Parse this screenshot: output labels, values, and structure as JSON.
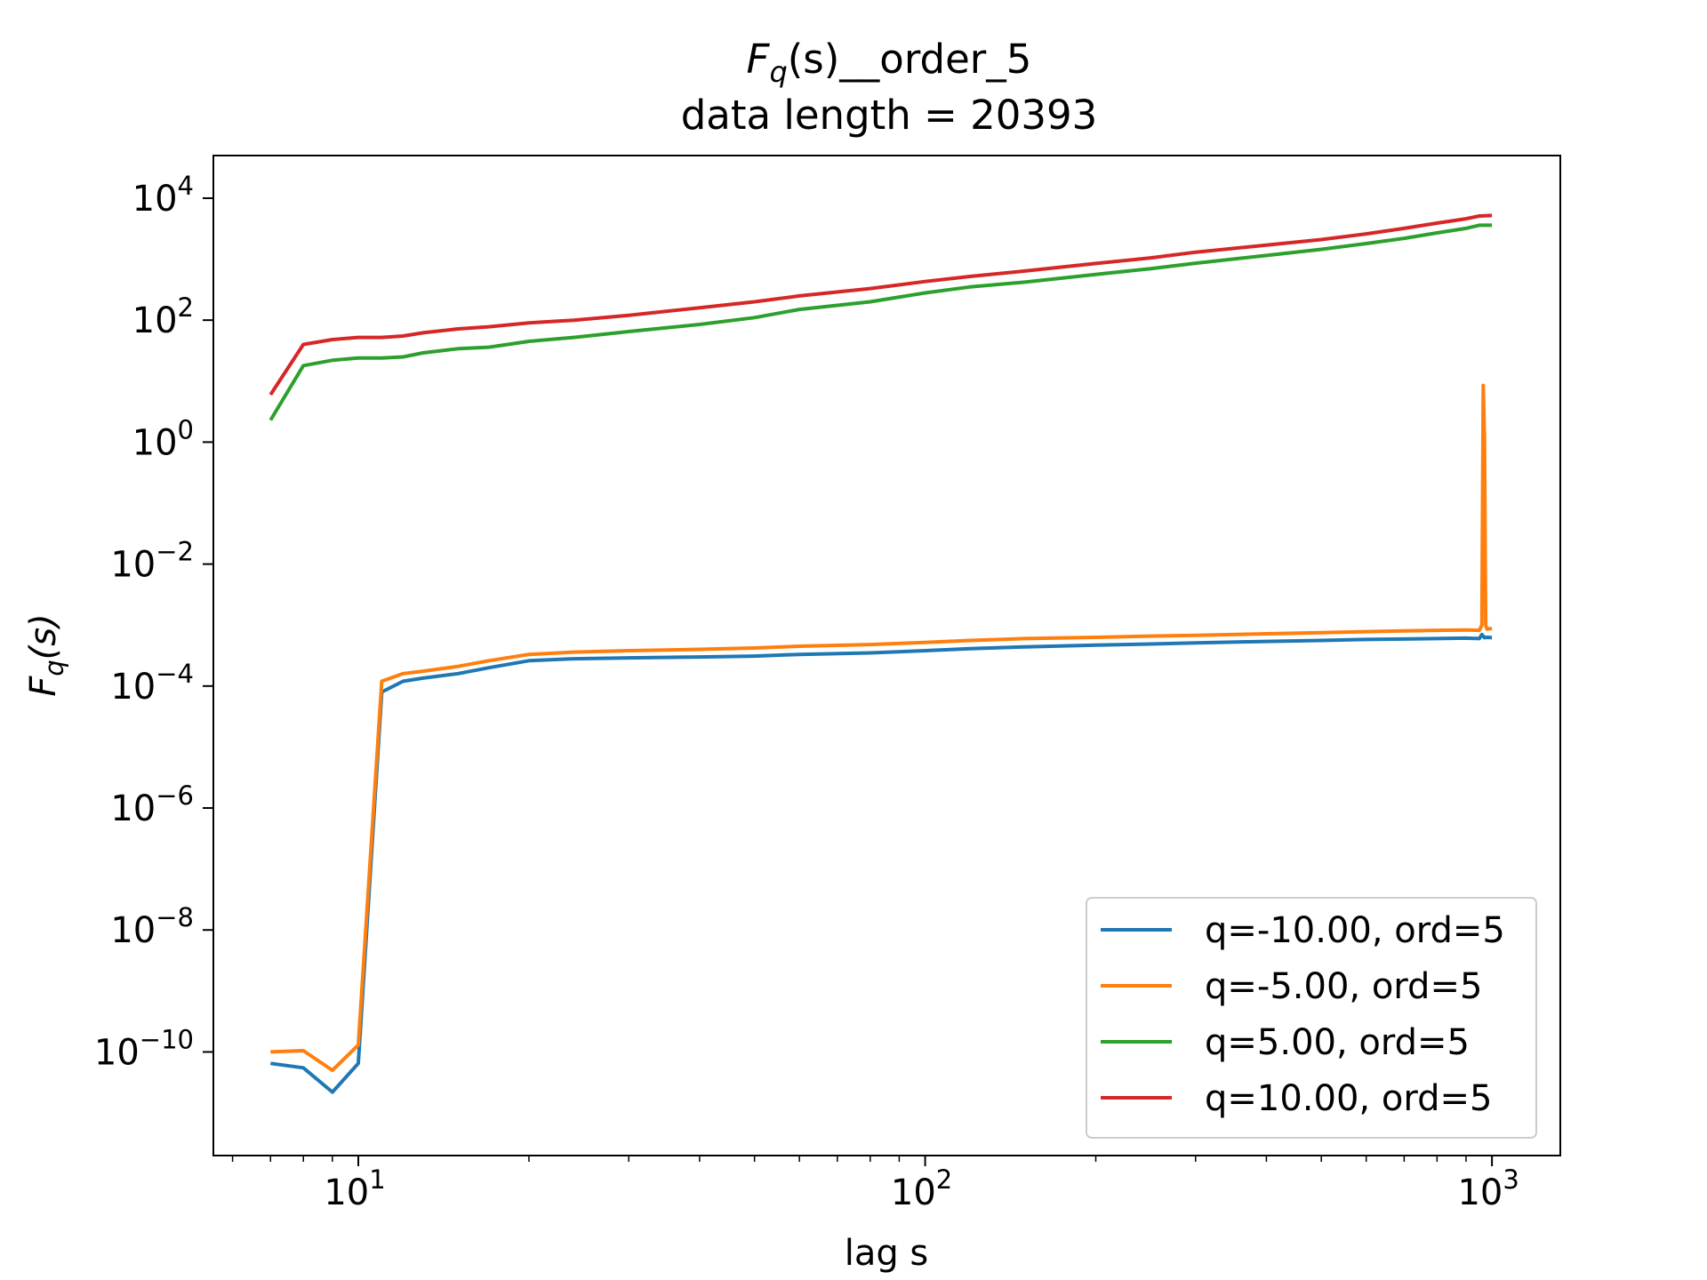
{
  "chart_data": {
    "type": "line",
    "title_main": "F",
    "title_sub": "q",
    "title_rest": "(s)__order_5",
    "subtitle": "data length = 20393",
    "xlabel": "lag s",
    "ylabel_main": "F",
    "ylabel_sub": "q",
    "ylabel_rest": "(s)",
    "x_scale": "log",
    "y_scale": "log",
    "xlim": [
      5.55,
      1320
    ],
    "ylim": [
      2e-12,
      50000
    ],
    "x_ticks": [
      {
        "base": "10",
        "exp": "1",
        "value": 10
      },
      {
        "base": "10",
        "exp": "2",
        "value": 100
      },
      {
        "base": "10",
        "exp": "3",
        "value": 1000
      }
    ],
    "y_ticks": [
      {
        "base": "10",
        "exp": "−10",
        "value": 1e-10
      },
      {
        "base": "10",
        "exp": "−8",
        "value": 1e-08
      },
      {
        "base": "10",
        "exp": "−6",
        "value": 1e-06
      },
      {
        "base": "10",
        "exp": "−4",
        "value": 0.0001
      },
      {
        "base": "10",
        "exp": "−2",
        "value": 0.01
      },
      {
        "base": "10",
        "exp": "0",
        "value": 1
      },
      {
        "base": "10",
        "exp": "2",
        "value": 100
      },
      {
        "base": "10",
        "exp": "4",
        "value": 10000
      }
    ],
    "grid": false,
    "legend_position": "lower-right",
    "series": [
      {
        "name": "q=-10.00, ord=5",
        "color": "#1f77b4",
        "x": [
          7,
          8,
          9,
          10,
          11,
          12,
          13,
          15,
          17,
          20,
          24,
          30,
          40,
          50,
          60,
          80,
          100,
          120,
          150,
          200,
          250,
          300,
          400,
          500,
          600,
          700,
          800,
          900,
          950,
          960,
          970,
          980,
          1000
        ],
        "y": [
          6.5e-11,
          5.5e-11,
          2.2e-11,
          6.5e-11,
          8e-05,
          0.00012,
          0.000135,
          0.00016,
          0.0002,
          0.00026,
          0.00028,
          0.00029,
          0.0003,
          0.00031,
          0.00033,
          0.00035,
          0.00038,
          0.00041,
          0.00044,
          0.00047,
          0.00049,
          0.00051,
          0.00054,
          0.00056,
          0.00058,
          0.00059,
          0.0006,
          0.00061,
          0.0006,
          0.0007,
          0.00062,
          0.00063,
          0.00062
        ]
      },
      {
        "name": "q=-5.00, ord=5",
        "color": "#ff7f0e",
        "x": [
          7,
          8,
          9,
          10,
          11,
          12,
          13,
          15,
          17,
          20,
          24,
          30,
          40,
          50,
          60,
          80,
          100,
          120,
          150,
          200,
          250,
          300,
          400,
          500,
          600,
          700,
          800,
          900,
          950,
          960,
          965,
          970,
          975,
          980,
          1000
        ],
        "y": [
          1e-10,
          1.05e-10,
          5e-11,
          1.3e-10,
          0.00012,
          0.00016,
          0.000175,
          0.00021,
          0.00026,
          0.00033,
          0.00036,
          0.00038,
          0.0004,
          0.00042,
          0.00045,
          0.00048,
          0.00052,
          0.00056,
          0.0006,
          0.00063,
          0.00066,
          0.00068,
          0.00072,
          0.00075,
          0.00078,
          0.0008,
          0.00082,
          0.00083,
          0.00082,
          0.001,
          8.5,
          1.2,
          0.001,
          0.00086,
          0.00088
        ]
      },
      {
        "name": "q=5.00, ord=5",
        "color": "#2ca02c",
        "x": [
          7,
          8,
          9,
          10,
          11,
          12,
          13,
          15,
          17,
          20,
          24,
          30,
          40,
          50,
          60,
          80,
          100,
          120,
          150,
          200,
          250,
          300,
          400,
          500,
          600,
          700,
          800,
          900,
          950,
          1000
        ],
        "y": [
          2.3,
          18,
          22,
          24,
          24,
          25,
          29,
          34,
          36,
          45,
          52,
          65,
          85,
          110,
          150,
          200,
          280,
          350,
          420,
          560,
          700,
          860,
          1150,
          1450,
          1800,
          2200,
          2700,
          3200,
          3600,
          3600
        ]
      },
      {
        "name": "q=10.00, ord=5",
        "color": "#d62728",
        "x": [
          7,
          8,
          9,
          10,
          11,
          12,
          13,
          15,
          17,
          20,
          24,
          30,
          40,
          50,
          60,
          80,
          100,
          120,
          150,
          200,
          250,
          300,
          400,
          500,
          600,
          700,
          800,
          900,
          950,
          1000
        ],
        "y": [
          6,
          40,
          48,
          52,
          52,
          55,
          62,
          72,
          78,
          90,
          100,
          120,
          160,
          200,
          250,
          330,
          430,
          520,
          640,
          850,
          1050,
          1300,
          1700,
          2100,
          2600,
          3200,
          3900,
          4600,
          5100,
          5200
        ]
      }
    ]
  }
}
